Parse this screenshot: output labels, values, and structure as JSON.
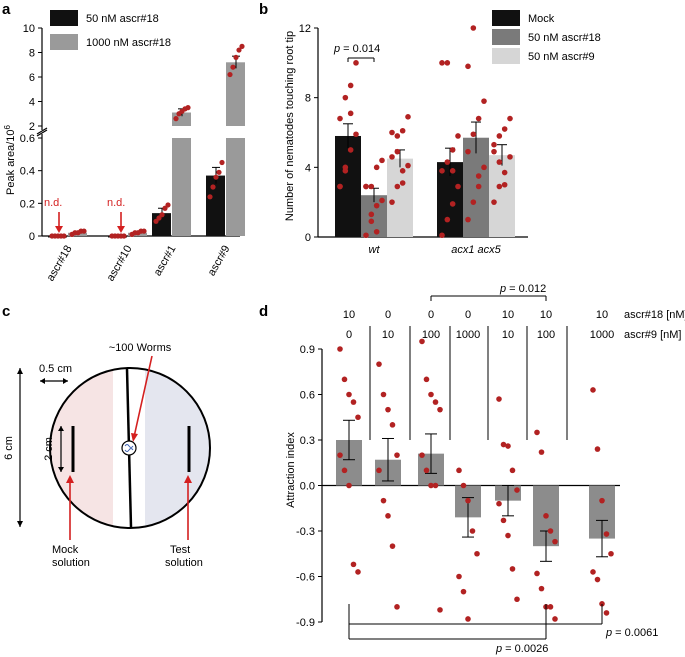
{
  "colors": {
    "black_bar": "#111111",
    "dark_gray_bar": "#7a7a7a",
    "light_gray_bar": "#d6d6d6",
    "bar_gray": "#8c8c8c",
    "dot_red": "#b22222",
    "annot_red": "#d42020",
    "mock_region": "#f6e4e4",
    "test_region": "#e4e6ef"
  },
  "chart_data": [
    {
      "panel": "a",
      "type": "bar",
      "ylabel": "Peak area/10",
      "ylabel_sup": "6",
      "categories": [
        "ascr#18",
        "ascr#10",
        "ascr#1",
        "ascr#9"
      ],
      "series": [
        {
          "name": "50 nM ascr#18",
          "values": [
            0.0,
            0.0,
            0.14,
            0.37
          ],
          "errors": [
            0,
            0,
            0.03,
            0.05
          ],
          "points": [
            [
              0,
              0,
              0,
              0,
              0
            ],
            [
              0,
              0,
              0,
              0,
              0
            ],
            [
              0.09,
              0.11,
              0.13,
              0.17,
              0.19
            ],
            [
              0.24,
              0.3,
              0.36,
              0.39,
              0.45
            ]
          ]
        },
        {
          "name": "1000 nM ascr#18",
          "values": [
            0.02,
            0.02,
            3.1,
            7.2
          ],
          "errors": [
            0,
            0,
            0.3,
            0.5
          ],
          "points": [
            [
              0.01,
              0.02,
              0.02,
              0.03,
              0.03
            ],
            [
              0.01,
              0.02,
              0.02,
              0.03,
              0.03
            ],
            [
              2.6,
              3.0,
              3.2,
              3.4,
              3.5
            ],
            [
              6.2,
              6.8,
              7.6,
              8.2,
              8.5
            ]
          ]
        }
      ],
      "broken_axis": {
        "lower": [
          0,
          0.6
        ],
        "upper": [
          2,
          10
        ]
      },
      "yticks_lower": [
        "0",
        "0.2",
        "0.4",
        "0.6"
      ],
      "yticks_upper": [
        "2",
        "4",
        "6",
        "8",
        "10"
      ],
      "annotations": [
        "n.d.",
        "n.d."
      ]
    },
    {
      "panel": "b",
      "type": "bar",
      "ylabel": "Number of nematodes touching root tip",
      "categories": [
        "wt",
        "acx1 acx5"
      ],
      "series": [
        {
          "name": "Mock",
          "values": [
            5.8,
            4.3
          ],
          "errors": [
            0.7,
            0.8
          ],
          "points": [
            [
              2.9,
              4,
              5,
              5.9,
              6.8,
              8,
              8.7,
              10,
              2.9,
              3.8,
              7.1
            ],
            [
              0.1,
              1,
              1.9,
              2.9,
              3.8,
              4.3,
              5,
              5.8,
              10,
              10,
              3.8
            ]
          ]
        },
        {
          "name": "50 nM ascr#18",
          "values": [
            2.4,
            5.7
          ],
          "errors": [
            0.4,
            0.9
          ],
          "points": [
            [
              0.1,
              0.9,
              1.8,
              2.1,
              2.9,
              2.9,
              4,
              4.4,
              2.9,
              1.3,
              0.3
            ],
            [
              1,
              2,
              2.9,
              4,
              4.9,
              5.9,
              6.8,
              7.8,
              9.8,
              12,
              3.5
            ]
          ]
        },
        {
          "name": "50 nM ascr#9",
          "values": [
            4.5,
            4.7
          ],
          "errors": [
            0.5,
            0.6
          ],
          "points": [
            [
              2,
              2.9,
              3.8,
              4.1,
              4.6,
              5.8,
              6.1,
              6.9,
              6,
              4.9,
              3.1
            ],
            [
              2,
              2.9,
              3.7,
              4.6,
              4.9,
              5.8,
              6.2,
              6.8,
              5.3,
              4.3,
              3
            ]
          ]
        }
      ],
      "ylim": [
        0,
        12
      ],
      "yticks": [
        "0",
        "4",
        "8",
        "12"
      ],
      "annotation_p": "p = 0.014"
    },
    {
      "panel": "d",
      "type": "bar",
      "ylabel": "Attraction index",
      "ascr18_label": "ascr#18 [nM]",
      "ascr9_label": "ascr#9 [nM]",
      "ascr18": [
        "10",
        "0",
        "0",
        "0",
        "10",
        "10",
        "10"
      ],
      "ascr9": [
        "0",
        "10",
        "100",
        "1000",
        "10",
        "100",
        "1000"
      ],
      "values": [
        0.3,
        0.17,
        0.21,
        -0.21,
        -0.1,
        -0.4,
        -0.35
      ],
      "errors": [
        0.13,
        0.14,
        0.13,
        0.13,
        0.1,
        0.1,
        0.12
      ],
      "points": [
        [
          0.9,
          0.7,
          0.6,
          0.55,
          0.45,
          0.2,
          0.1,
          0.0,
          -0.52,
          -0.57
        ],
        [
          0.8,
          0.6,
          0.5,
          0.4,
          0.2,
          0.1,
          -0.1,
          -0.2,
          -0.4,
          -0.8
        ],
        [
          0.95,
          0.7,
          0.6,
          0.55,
          0.5,
          0.2,
          0.1,
          0.0,
          0.0,
          -0.82
        ],
        [
          0.1,
          0.0,
          -0.1,
          -0.3,
          -0.45,
          -0.6,
          -0.7,
          -0.88
        ],
        [
          0.57,
          0.27,
          0.26,
          0.1,
          -0.03,
          -0.12,
          -0.23,
          -0.33,
          -0.55,
          -0.75
        ],
        [
          0.35,
          0.22,
          -0.2,
          -0.3,
          -0.37,
          -0.58,
          -0.68,
          -0.8,
          -0.8,
          -0.88
        ],
        [
          0.63,
          0.24,
          -0.1,
          -0.32,
          -0.45,
          -0.57,
          -0.62,
          -0.78,
          -0.84
        ]
      ],
      "ylim": [
        -0.9,
        0.9
      ],
      "yticks": [
        "-0.9",
        "-0.6",
        "-0.3",
        "0.0",
        "0.3",
        "0.6",
        "0.9"
      ],
      "p_top": "p = 0.012",
      "p_1": "p = 0.0061",
      "p_2": "p = 0.0026"
    }
  ],
  "panel_labels": {
    "a": "a",
    "b": "b",
    "c": "c",
    "d": "d"
  },
  "schematic": {
    "worms_label": "~100 Worms",
    "width_label": "0.5 cm",
    "height_label": "2 cm",
    "diameter_label": "6 cm",
    "mock_label": "Mock\nsolution",
    "test_label": "Test\nsolution"
  }
}
